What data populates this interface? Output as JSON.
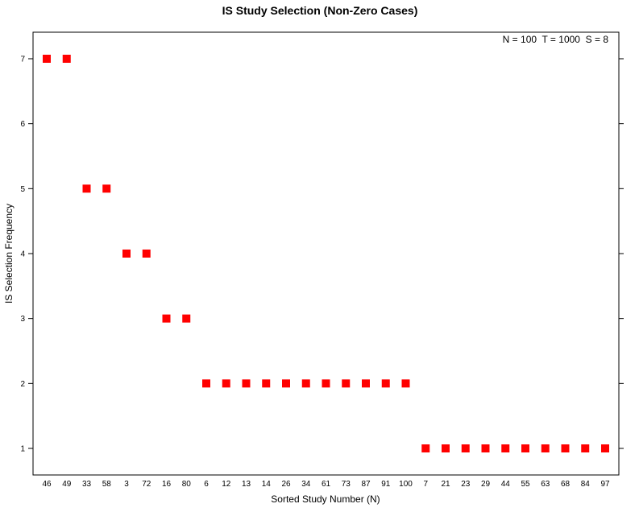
{
  "chart_data": {
    "type": "scatter",
    "title": "IS Study Selection (Non-Zero Cases)",
    "xlabel": "Sorted Study Number (N)",
    "ylabel": "IS Selection Frequency",
    "annotation": "N = 100  T = 1000  S = 8",
    "categories": [
      "46",
      "49",
      "33",
      "58",
      "3",
      "72",
      "16",
      "80",
      "6",
      "12",
      "13",
      "14",
      "26",
      "34",
      "61",
      "73",
      "87",
      "91",
      "100",
      "7",
      "21",
      "23",
      "29",
      "44",
      "55",
      "63",
      "68",
      "84",
      "97"
    ],
    "values": [
      7,
      7,
      5,
      5,
      4,
      4,
      3,
      3,
      2,
      2,
      2,
      2,
      2,
      2,
      2,
      2,
      2,
      2,
      2,
      1,
      1,
      1,
      1,
      1,
      1,
      1,
      1,
      1,
      1
    ],
    "yticks": [
      1,
      2,
      3,
      4,
      5,
      6,
      7
    ],
    "ylim": [
      0.6,
      7.4
    ],
    "marker": "square",
    "marker_color": "#ff0000",
    "grid": false
  }
}
